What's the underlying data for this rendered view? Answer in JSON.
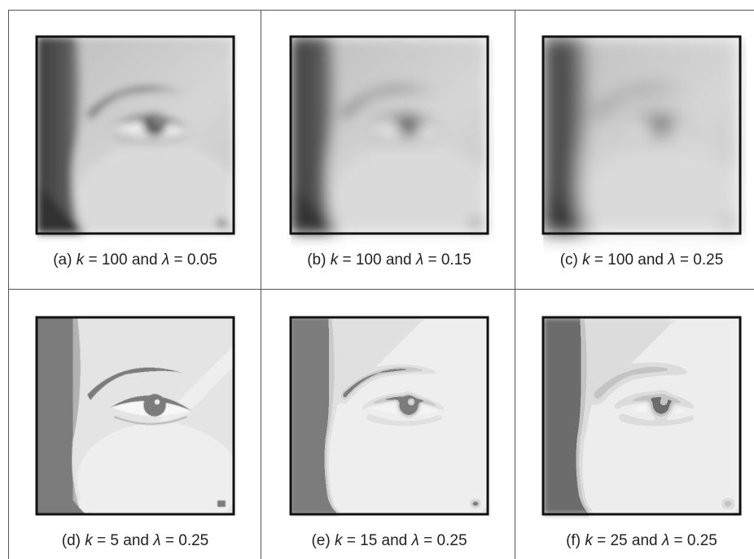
{
  "figure": {
    "panels": [
      {
        "caption": [
          "(a) ",
          "k",
          " = 100 and ",
          "λ",
          " = 0.05"
        ]
      },
      {
        "caption": [
          "(b) ",
          "k",
          " = 100 and ",
          "λ",
          " = 0.15"
        ]
      },
      {
        "caption": [
          "(c) ",
          "k",
          " = 100 and ",
          "λ",
          " = 0.25"
        ]
      },
      {
        "caption": [
          "(d) ",
          "k",
          " = 5 and ",
          "λ",
          " = 0.25"
        ]
      },
      {
        "caption": [
          "(e) ",
          "k",
          " = 15 and ",
          "λ",
          " = 0.25"
        ]
      },
      {
        "caption": [
          "(f) ",
          "k",
          " = 25 and ",
          "λ",
          " = 0.25"
        ]
      }
    ]
  }
}
